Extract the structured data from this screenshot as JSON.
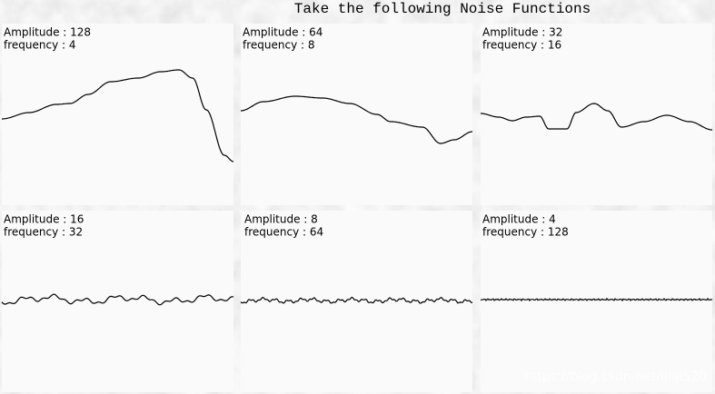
{
  "title": "Take the following Noise Functions",
  "panels": [
    {
      "amplitude": "Amplitude : 128",
      "frequency": "frequency : 4"
    },
    {
      "amplitude": "Amplitude : 64",
      "frequency": "frequency : 8"
    },
    {
      "amplitude": "Amplitude : 32",
      "frequency": "frequency : 16"
    },
    {
      "amplitude": "Amplitude : 16",
      "frequency": "frequency : 32"
    },
    {
      "amplitude": "Amplitude : 8",
      "frequency": "frequency : 64"
    },
    {
      "amplitude": "Amplitude : 4",
      "frequency": "frequency : 128"
    }
  ],
  "watermark": "https://blog.csdn.net/linji520"
}
